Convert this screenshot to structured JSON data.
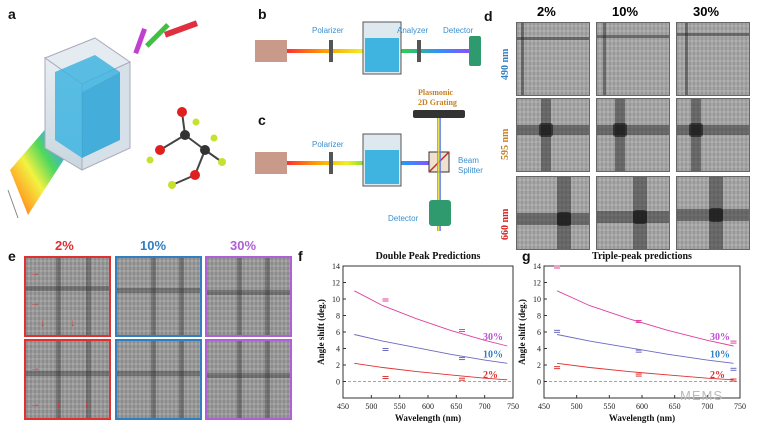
{
  "panels": {
    "a": "a",
    "b": "b",
    "c": "c",
    "d": "d",
    "e": "e",
    "f": "f",
    "g": "g"
  },
  "setup_b": {
    "polarizer": "Polarizer",
    "analyzer": "Analyzer",
    "detector": "Detector"
  },
  "setup_c": {
    "polarizer": "Polarizer",
    "grating_line1": "Plasmonic",
    "grating_line2": "2D Grating",
    "splitter_line1": "Beam",
    "splitter_line2": "Splitter",
    "detector": "Detector"
  },
  "panel_d": {
    "columns": [
      "2%",
      "10%",
      "30%"
    ],
    "rows": [
      {
        "label": "490 nm",
        "color": "#2f7fc1"
      },
      {
        "label": "595 nm",
        "color": "#c7801e"
      },
      {
        "label": "660 nm",
        "color": "#d42020"
      }
    ]
  },
  "panel_e": {
    "columns": [
      {
        "label": "2%",
        "color": "#e03030"
      },
      {
        "label": "10%",
        "color": "#2f7fc1"
      },
      {
        "label": "30%",
        "color": "#b05fd6"
      }
    ]
  },
  "watermark": "MEMS",
  "chart_data": [
    {
      "type": "line",
      "title": "Double Peak Predictions",
      "xlabel": "Wavelength (nm)",
      "ylabel": "Angle shift (deg.)",
      "xlim": [
        450,
        750
      ],
      "ylim": [
        -2,
        14
      ],
      "xticks": [
        450,
        500,
        550,
        600,
        650,
        700,
        750
      ],
      "yticks": [
        0,
        2,
        4,
        6,
        8,
        10,
        12,
        14
      ],
      "series": [
        {
          "name": "30%",
          "color": "#e0409e",
          "x": [
            470,
            520,
            580,
            640,
            700,
            740
          ],
          "values": [
            11.0,
            9.2,
            7.6,
            6.2,
            5.0,
            4.3
          ],
          "points": [
            {
              "x": 525,
              "y": 10.0
            },
            {
              "x": 660,
              "y": 6.3
            }
          ]
        },
        {
          "name": "10%",
          "color": "#6a6ac0",
          "x": [
            470,
            520,
            580,
            640,
            700,
            740
          ],
          "values": [
            5.7,
            4.9,
            4.1,
            3.3,
            2.6,
            2.2
          ],
          "points": [
            {
              "x": 525,
              "y": 4.0
            },
            {
              "x": 660,
              "y": 2.9
            }
          ]
        },
        {
          "name": "2%",
          "color": "#e03030",
          "x": [
            470,
            520,
            580,
            640,
            700,
            740
          ],
          "values": [
            2.2,
            1.7,
            1.2,
            0.8,
            0.4,
            0.2
          ],
          "points": [
            {
              "x": 525,
              "y": 0.6
            },
            {
              "x": 660,
              "y": 0.4
            }
          ]
        }
      ],
      "legend": [
        "30%",
        "10%",
        "2%"
      ]
    },
    {
      "type": "line",
      "title": "Triple-peak predictions",
      "xlabel": "Wavelength (nm)",
      "ylabel": "Angle shift (deg.)",
      "xlim": [
        450,
        750
      ],
      "ylim": [
        -2,
        14
      ],
      "xticks": [
        450,
        500,
        550,
        600,
        650,
        700,
        750
      ],
      "yticks": [
        0,
        2,
        4,
        6,
        8,
        10,
        12,
        14
      ],
      "series": [
        {
          "name": "30%",
          "color": "#e0409e",
          "x": [
            470,
            520,
            580,
            640,
            700,
            740
          ],
          "values": [
            11.0,
            9.2,
            7.6,
            6.2,
            5.0,
            4.3
          ],
          "points": [
            {
              "x": 470,
              "y": 14.0
            },
            {
              "x": 595,
              "y": 7.4
            },
            {
              "x": 740,
              "y": 4.9
            }
          ]
        },
        {
          "name": "10%",
          "color": "#6a6ac0",
          "x": [
            470,
            520,
            580,
            640,
            700,
            740
          ],
          "values": [
            5.7,
            4.9,
            4.1,
            3.3,
            2.6,
            2.2
          ],
          "points": [
            {
              "x": 470,
              "y": 6.2
            },
            {
              "x": 595,
              "y": 3.8
            },
            {
              "x": 740,
              "y": 1.6
            }
          ]
        },
        {
          "name": "2%",
          "color": "#e03030",
          "x": [
            470,
            520,
            580,
            640,
            700,
            740
          ],
          "values": [
            2.2,
            1.7,
            1.2,
            0.8,
            0.4,
            0.2
          ],
          "points": [
            {
              "x": 470,
              "y": 1.8
            },
            {
              "x": 595,
              "y": 0.9
            },
            {
              "x": 740,
              "y": 0.3
            }
          ]
        }
      ],
      "legend": [
        "30%",
        "10%",
        "2%"
      ]
    }
  ]
}
